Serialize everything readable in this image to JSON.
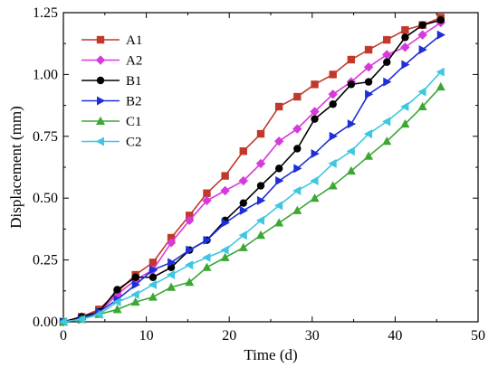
{
  "chart_data": {
    "type": "line",
    "title": "",
    "xlabel": "Time (d)",
    "ylabel": "Displacement (mm)",
    "xlim": [
      0,
      50
    ],
    "ylim": [
      0,
      1.25
    ],
    "xticks": [
      0,
      10,
      20,
      30,
      40,
      50
    ],
    "yticks": [
      0.0,
      0.25,
      0.5,
      0.75,
      1.0,
      1.25
    ],
    "xtick_labels": [
      "0",
      "10",
      "20",
      "30",
      "40",
      "50"
    ],
    "ytick_labels": [
      "0.00",
      "0.25",
      "0.50",
      "0.75",
      "1.00",
      "1.25"
    ],
    "grid": false,
    "legend_position": "top-left",
    "series": [
      {
        "name": "A1",
        "color": "#c0392b",
        "marker": "square",
        "x": [
          0,
          2.2,
          4.3,
          6.5,
          8.7,
          10.8,
          13,
          15.2,
          17.3,
          19.5,
          21.7,
          23.8,
          26,
          28.2,
          30.3,
          32.5,
          34.7,
          36.8,
          39,
          41.2,
          43.3,
          45.5
        ],
        "y": [
          0,
          0.02,
          0.05,
          0.12,
          0.19,
          0.24,
          0.34,
          0.43,
          0.52,
          0.59,
          0.69,
          0.76,
          0.87,
          0.91,
          0.96,
          1.0,
          1.06,
          1.1,
          1.14,
          1.18,
          1.2,
          1.23
        ]
      },
      {
        "name": "A2",
        "color": "#d63adb",
        "marker": "diamond",
        "x": [
          0,
          2.2,
          4.3,
          6.5,
          8.7,
          10.8,
          13,
          15.2,
          17.3,
          19.5,
          21.7,
          23.8,
          26,
          28.2,
          30.3,
          32.5,
          34.7,
          36.8,
          39,
          41.2,
          43.3,
          45.5
        ],
        "y": [
          0,
          0.02,
          0.04,
          0.11,
          0.17,
          0.21,
          0.32,
          0.41,
          0.49,
          0.53,
          0.57,
          0.64,
          0.73,
          0.78,
          0.85,
          0.92,
          0.97,
          1.03,
          1.08,
          1.11,
          1.16,
          1.21
        ]
      },
      {
        "name": "B1",
        "color": "#000000",
        "marker": "circle",
        "x": [
          0,
          2.2,
          4.3,
          6.5,
          8.7,
          10.8,
          13,
          15.2,
          17.3,
          19.5,
          21.7,
          23.8,
          26,
          28.2,
          30.3,
          32.5,
          34.7,
          36.8,
          39,
          41.2,
          43.3,
          45.5
        ],
        "y": [
          0,
          0.02,
          0.04,
          0.13,
          0.18,
          0.18,
          0.22,
          0.29,
          0.33,
          0.41,
          0.48,
          0.55,
          0.62,
          0.7,
          0.82,
          0.88,
          0.96,
          0.97,
          1.05,
          1.15,
          1.2,
          1.22
        ]
      },
      {
        "name": "B2",
        "color": "#1f2fd6",
        "marker": "triangle-right",
        "x": [
          0,
          2.2,
          4.3,
          6.5,
          8.7,
          10.8,
          13,
          15.2,
          17.3,
          19.5,
          21.7,
          23.8,
          26,
          28.2,
          30.3,
          32.5,
          34.7,
          36.8,
          39,
          41.2,
          43.3,
          45.5
        ],
        "y": [
          0,
          0.01,
          0.04,
          0.09,
          0.15,
          0.21,
          0.24,
          0.29,
          0.33,
          0.4,
          0.45,
          0.49,
          0.57,
          0.62,
          0.68,
          0.75,
          0.8,
          0.92,
          0.97,
          1.04,
          1.1,
          1.16
        ]
      },
      {
        "name": "C1",
        "color": "#3aa832",
        "marker": "triangle-up",
        "x": [
          0,
          2.2,
          4.3,
          6.5,
          8.7,
          10.8,
          13,
          15.2,
          17.3,
          19.5,
          21.7,
          23.8,
          26,
          28.2,
          30.3,
          32.5,
          34.7,
          36.8,
          39,
          41.2,
          43.3,
          45.5
        ],
        "y": [
          0,
          0.01,
          0.03,
          0.05,
          0.08,
          0.1,
          0.14,
          0.16,
          0.22,
          0.26,
          0.3,
          0.35,
          0.4,
          0.45,
          0.5,
          0.55,
          0.61,
          0.67,
          0.73,
          0.8,
          0.87,
          0.95
        ]
      },
      {
        "name": "C2",
        "color": "#3fc7e0",
        "marker": "triangle-left",
        "x": [
          0,
          2.2,
          4.3,
          6.5,
          8.7,
          10.8,
          13,
          15.2,
          17.3,
          19.5,
          21.7,
          23.8,
          26,
          28.2,
          30.3,
          32.5,
          34.7,
          36.8,
          39,
          41.2,
          43.3,
          45.5
        ],
        "y": [
          0,
          0.01,
          0.03,
          0.08,
          0.11,
          0.15,
          0.19,
          0.23,
          0.26,
          0.29,
          0.35,
          0.41,
          0.47,
          0.53,
          0.57,
          0.64,
          0.69,
          0.76,
          0.81,
          0.87,
          0.93,
          1.01
        ]
      }
    ]
  }
}
